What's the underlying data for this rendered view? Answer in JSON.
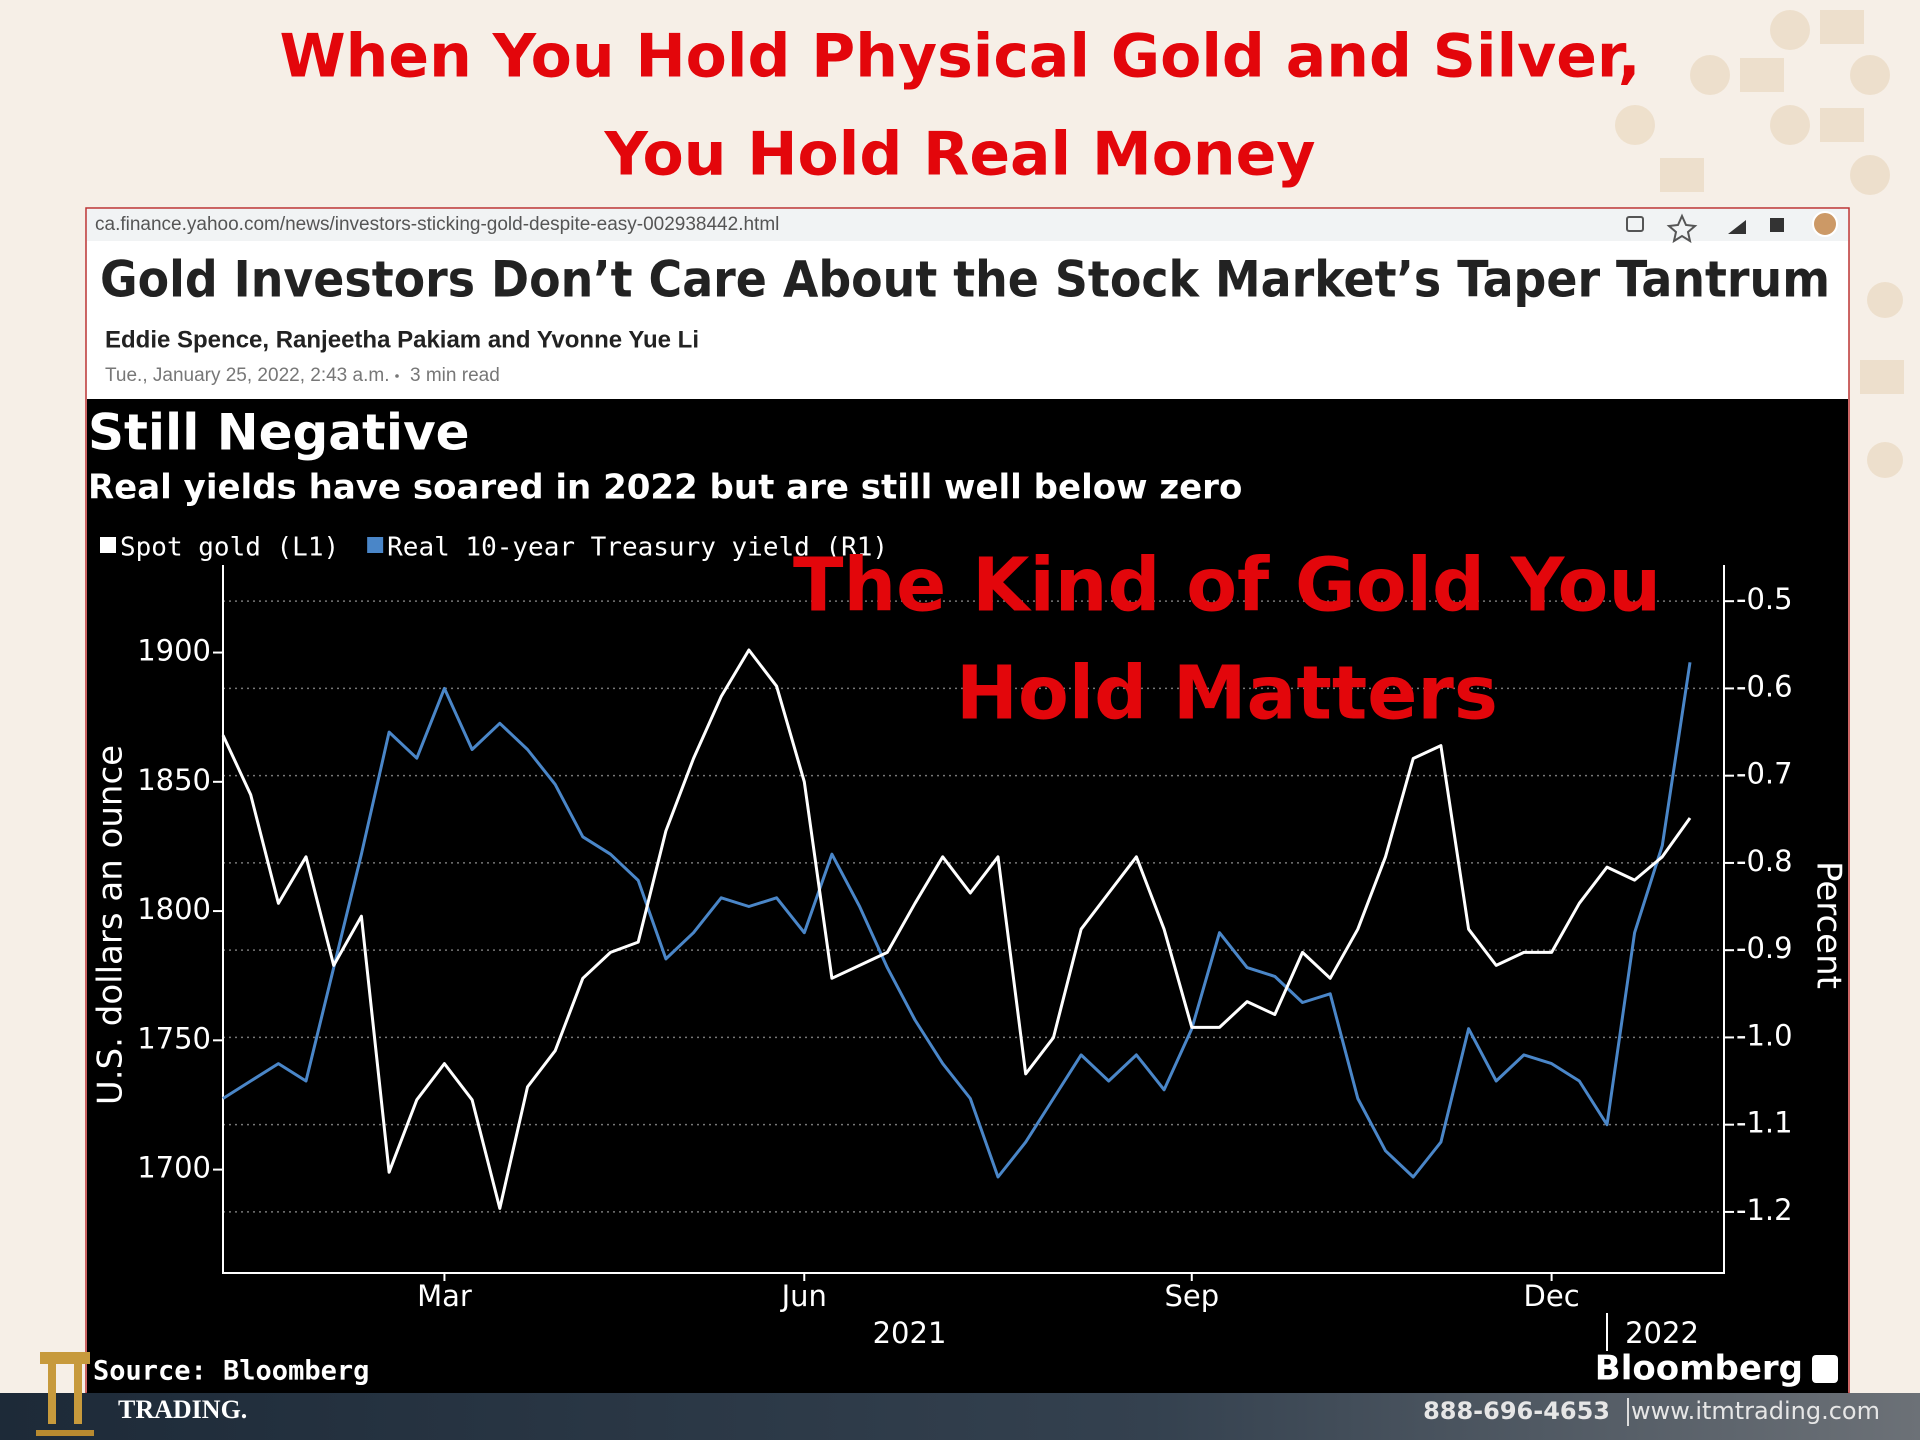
{
  "slide": {
    "title_lines": [
      "When You Hold Physical Gold and Silver,",
      "You Hold Real Money"
    ],
    "overlay_lines": [
      "The Kind of Gold You",
      "Hold Matters"
    ],
    "footer": {
      "brand": "TRADING.",
      "phone": "888-696-4653",
      "website": "www.itmtrading.com"
    }
  },
  "browser": {
    "url": "ca.finance.yahoo.com/news/investors-sticking-gold-despite-easy-002938442.html"
  },
  "article": {
    "headline": "Gold Investors Don’t Care About the Stock Market’s Taper Tantrum",
    "authors": "Eddie Spence, Ranjeetha Pakiam and Yvonne Yue Li",
    "dateline": "Tue., January 25, 2022, 2:43 a.m.",
    "read_time": "3 min read"
  },
  "chart_data": {
    "type": "line",
    "title": "Still Negative",
    "subtitle": "Real yields have soared in 2022 but are still well below zero",
    "categories": [
      null,
      null,
      null,
      null,
      null,
      null,
      null,
      null,
      "Mar",
      null,
      null,
      null,
      null,
      null,
      null,
      null,
      null,
      null,
      null,
      null,
      null,
      "Jun",
      null,
      null,
      null,
      null,
      null,
      null,
      null,
      null,
      null,
      null,
      null,
      null,
      null,
      "Sep",
      null,
      null,
      null,
      null,
      null,
      null,
      null,
      null,
      null,
      null,
      null,
      null,
      "Dec",
      null,
      null,
      null,
      null,
      null
    ],
    "year_labels": [
      "2021",
      "2022"
    ],
    "series": [
      {
        "name": "Spot gold (L1)",
        "color": "#ffffff",
        "values": [
          1868,
          1845,
          1803,
          1821,
          1779,
          1798,
          1699,
          1727,
          1741,
          1727,
          1685,
          1732,
          1746,
          1774,
          1784,
          1788,
          1831,
          1859,
          1883,
          1901,
          1887,
          1850,
          1774,
          1779,
          1784,
          1803,
          1821,
          1807,
          1821,
          1737,
          1751,
          1793,
          1807,
          1821,
          1793,
          1755,
          1755,
          1765,
          1760,
          1784,
          1774,
          1793,
          1821,
          1859,
          1864,
          1793,
          1779,
          1784,
          1784,
          1803,
          1817,
          1812,
          1821,
          1836
        ]
      },
      {
        "name": "Real 10-year Treasury yield (R1)",
        "color": "#4a86c8",
        "axis": "y2",
        "values": [
          -1.07,
          -1.05,
          -1.03,
          -1.05,
          -0.92,
          -0.79,
          -0.65,
          -0.68,
          -0.6,
          -0.67,
          -0.64,
          -0.67,
          -0.71,
          -0.77,
          -0.79,
          -0.82,
          -0.91,
          -0.88,
          -0.84,
          -0.85,
          -0.84,
          -0.88,
          -0.79,
          -0.85,
          -0.92,
          -0.98,
          -1.03,
          -1.07,
          -1.16,
          -1.12,
          -1.07,
          -1.02,
          -1.05,
          -1.02,
          -1.06,
          -0.99,
          -0.88,
          -0.92,
          -0.93,
          -0.96,
          -0.95,
          -1.07,
          -1.13,
          -1.16,
          -1.12,
          -0.99,
          -1.05,
          -1.02,
          -1.03,
          -1.05,
          -1.1,
          -0.88,
          -0.78,
          -0.57
        ]
      }
    ],
    "ylabel": "U.S. dollars an ounce",
    "y2label": "Percent",
    "ylim": [
      1660,
      1930
    ],
    "yticks": [
      1700,
      1750,
      1800,
      1850,
      1900
    ],
    "y2lim": [
      -1.27,
      -0.47
    ],
    "y2ticks": [
      -0.5,
      -0.6,
      -0.7,
      -0.8,
      -0.9,
      {
        "value": -1,
        "label": "-1.0"
      },
      -1.1,
      -1.2
    ],
    "grid": true,
    "source": "Source: Bloomberg",
    "brand": "Bloomberg"
  }
}
